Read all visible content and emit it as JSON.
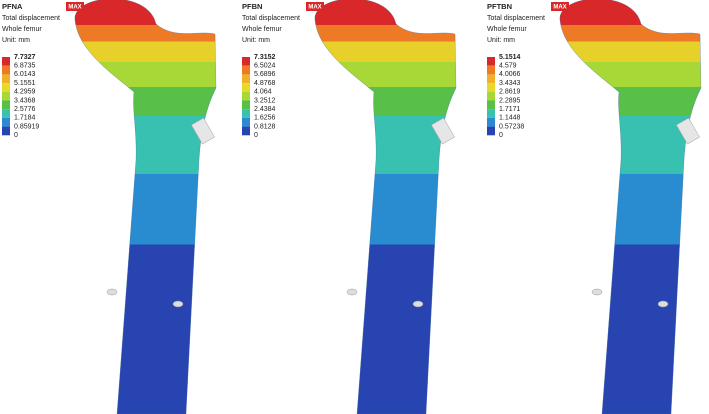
{
  "panels": [
    {
      "title": "PFNA",
      "subtitle": "Total displacement",
      "region": "Whole femur",
      "unit": "Unit: mm",
      "max_label": "MAX",
      "legend": [
        "7.7327",
        "6.8735",
        "6.0143",
        "5.1551",
        "4.2959",
        "3.4368",
        "2.5776",
        "1.7184",
        "0.85919",
        "0"
      ]
    },
    {
      "title": "PFBN",
      "subtitle": "Total displacement",
      "region": "Whole femur",
      "unit": "Unit: mm",
      "max_label": "MAX",
      "legend": [
        "7.3152",
        "6.5024",
        "5.6896",
        "4.8768",
        "4.064",
        "3.2512",
        "2.4384",
        "1.6256",
        "0.8128",
        "0"
      ]
    },
    {
      "title": "PFTBN",
      "subtitle": "Total displacement",
      "region": "Whole femur",
      "unit": "Unit: mm",
      "max_label": "MAX",
      "legend": [
        "5.1514",
        "4.579",
        "4.0066",
        "3.4343",
        "2.8619",
        "2.2895",
        "1.7171",
        "1.1448",
        "0.57238",
        "0"
      ]
    }
  ]
}
